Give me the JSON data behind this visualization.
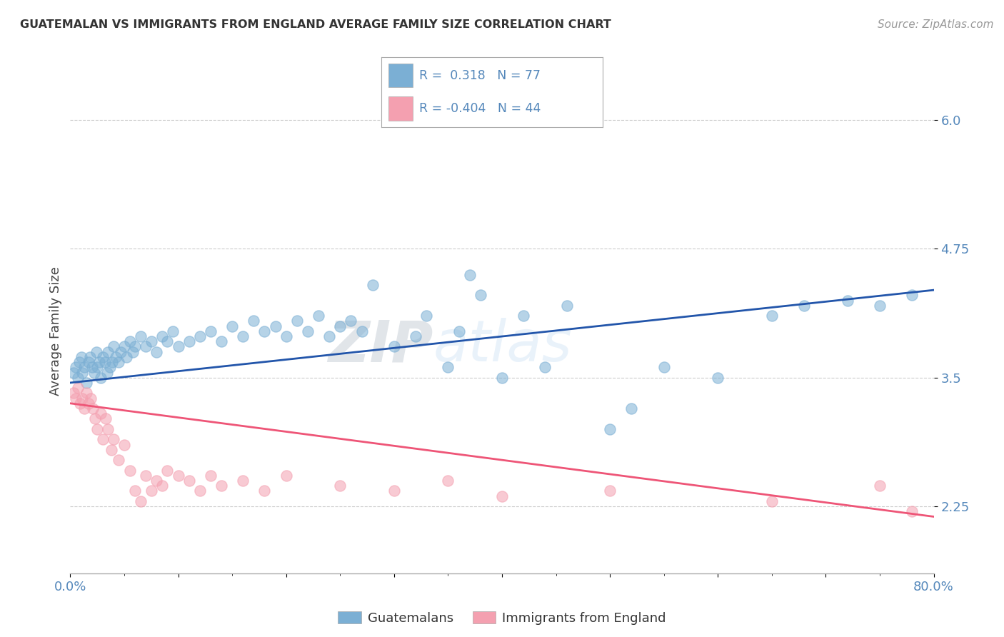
{
  "title": "GUATEMALAN VS IMMIGRANTS FROM ENGLAND AVERAGE FAMILY SIZE CORRELATION CHART",
  "source": "Source: ZipAtlas.com",
  "ylabel": "Average Family Size",
  "yticks": [
    2.25,
    3.5,
    4.75,
    6.0
  ],
  "xmin": 0.0,
  "xmax": 80.0,
  "ymin": 1.6,
  "ymax": 6.3,
  "blue_R": 0.318,
  "blue_N": 77,
  "pink_R": -0.404,
  "pink_N": 44,
  "blue_color": "#7BAFD4",
  "pink_color": "#F4A0B0",
  "blue_line_color": "#2255AA",
  "pink_line_color": "#EE5577",
  "blue_scatter": [
    [
      0.3,
      3.55
    ],
    [
      0.5,
      3.6
    ],
    [
      0.7,
      3.5
    ],
    [
      0.8,
      3.65
    ],
    [
      1.0,
      3.7
    ],
    [
      1.1,
      3.55
    ],
    [
      1.3,
      3.6
    ],
    [
      1.5,
      3.45
    ],
    [
      1.7,
      3.65
    ],
    [
      1.8,
      3.7
    ],
    [
      2.0,
      3.6
    ],
    [
      2.2,
      3.55
    ],
    [
      2.4,
      3.75
    ],
    [
      2.5,
      3.6
    ],
    [
      2.7,
      3.65
    ],
    [
      2.8,
      3.5
    ],
    [
      3.0,
      3.7
    ],
    [
      3.2,
      3.65
    ],
    [
      3.4,
      3.55
    ],
    [
      3.5,
      3.75
    ],
    [
      3.7,
      3.6
    ],
    [
      3.9,
      3.65
    ],
    [
      4.0,
      3.8
    ],
    [
      4.2,
      3.7
    ],
    [
      4.5,
      3.65
    ],
    [
      4.7,
      3.75
    ],
    [
      5.0,
      3.8
    ],
    [
      5.2,
      3.7
    ],
    [
      5.5,
      3.85
    ],
    [
      5.8,
      3.75
    ],
    [
      6.0,
      3.8
    ],
    [
      6.5,
      3.9
    ],
    [
      7.0,
      3.8
    ],
    [
      7.5,
      3.85
    ],
    [
      8.0,
      3.75
    ],
    [
      8.5,
      3.9
    ],
    [
      9.0,
      3.85
    ],
    [
      9.5,
      3.95
    ],
    [
      10.0,
      3.8
    ],
    [
      11.0,
      3.85
    ],
    [
      12.0,
      3.9
    ],
    [
      13.0,
      3.95
    ],
    [
      14.0,
      3.85
    ],
    [
      15.0,
      4.0
    ],
    [
      16.0,
      3.9
    ],
    [
      17.0,
      4.05
    ],
    [
      18.0,
      3.95
    ],
    [
      19.0,
      4.0
    ],
    [
      20.0,
      3.9
    ],
    [
      21.0,
      4.05
    ],
    [
      22.0,
      3.95
    ],
    [
      23.0,
      4.1
    ],
    [
      24.0,
      3.9
    ],
    [
      25.0,
      4.0
    ],
    [
      26.0,
      4.05
    ],
    [
      27.0,
      3.95
    ],
    [
      28.0,
      4.4
    ],
    [
      30.0,
      3.8
    ],
    [
      32.0,
      3.9
    ],
    [
      33.0,
      4.1
    ],
    [
      35.0,
      3.6
    ],
    [
      36.0,
      3.95
    ],
    [
      37.0,
      4.5
    ],
    [
      38.0,
      4.3
    ],
    [
      40.0,
      3.5
    ],
    [
      42.0,
      4.1
    ],
    [
      44.0,
      3.6
    ],
    [
      46.0,
      4.2
    ],
    [
      50.0,
      3.0
    ],
    [
      52.0,
      3.2
    ],
    [
      55.0,
      3.6
    ],
    [
      60.0,
      3.5
    ],
    [
      65.0,
      4.1
    ],
    [
      68.0,
      4.2
    ],
    [
      72.0,
      4.25
    ],
    [
      75.0,
      4.2
    ],
    [
      78.0,
      4.3
    ]
  ],
  "pink_scatter": [
    [
      0.3,
      3.35
    ],
    [
      0.5,
      3.3
    ],
    [
      0.7,
      3.4
    ],
    [
      0.9,
      3.25
    ],
    [
      1.1,
      3.3
    ],
    [
      1.3,
      3.2
    ],
    [
      1.5,
      3.35
    ],
    [
      1.7,
      3.25
    ],
    [
      1.9,
      3.3
    ],
    [
      2.1,
      3.2
    ],
    [
      2.3,
      3.1
    ],
    [
      2.5,
      3.0
    ],
    [
      2.8,
      3.15
    ],
    [
      3.0,
      2.9
    ],
    [
      3.3,
      3.1
    ],
    [
      3.5,
      3.0
    ],
    [
      3.8,
      2.8
    ],
    [
      4.0,
      2.9
    ],
    [
      4.5,
      2.7
    ],
    [
      5.0,
      2.85
    ],
    [
      5.5,
      2.6
    ],
    [
      6.0,
      2.4
    ],
    [
      6.5,
      2.3
    ],
    [
      7.0,
      2.55
    ],
    [
      7.5,
      2.4
    ],
    [
      8.0,
      2.5
    ],
    [
      8.5,
      2.45
    ],
    [
      9.0,
      2.6
    ],
    [
      10.0,
      2.55
    ],
    [
      11.0,
      2.5
    ],
    [
      12.0,
      2.4
    ],
    [
      13.0,
      2.55
    ],
    [
      14.0,
      2.45
    ],
    [
      16.0,
      2.5
    ],
    [
      18.0,
      2.4
    ],
    [
      20.0,
      2.55
    ],
    [
      25.0,
      2.45
    ],
    [
      30.0,
      2.4
    ],
    [
      35.0,
      2.5
    ],
    [
      40.0,
      2.35
    ],
    [
      50.0,
      2.4
    ],
    [
      65.0,
      2.3
    ],
    [
      75.0,
      2.45
    ],
    [
      78.0,
      2.2
    ]
  ],
  "blue_trend_x": [
    0.0,
    80.0
  ],
  "blue_trend_y": [
    3.45,
    4.35
  ],
  "pink_trend_x": [
    0.0,
    80.0
  ],
  "pink_trend_y": [
    3.25,
    2.15
  ],
  "background_color": "#FFFFFF",
  "grid_color": "#CCCCCC",
  "title_color": "#333333",
  "axis_color": "#5588BB",
  "watermark_color": "#AACCEE",
  "legend_color": "#5588BB"
}
